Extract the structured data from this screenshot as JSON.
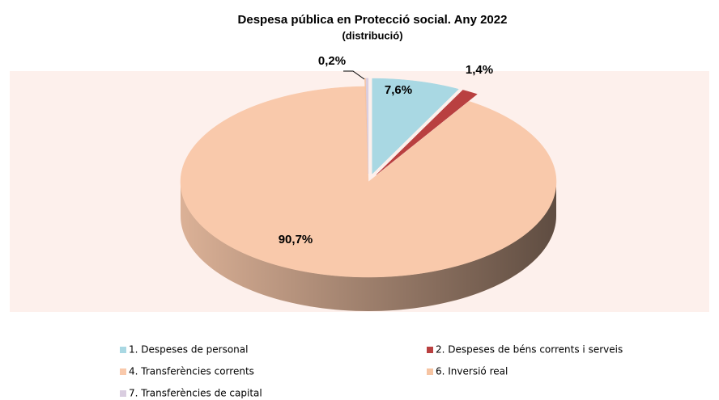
{
  "chart_data": {
    "type": "pie",
    "title": "Despesa pública en Protecció social. Any 2022",
    "subtitle": "(distribució)",
    "categories": [
      "1. Despeses de personal",
      "2. Despeses de béns corrents i serveis",
      "4. Transferències corrents",
      "6. Inversió real",
      "7. Transferències de capital"
    ],
    "values": [
      7.6,
      1.4,
      90.7,
      0.1,
      0.2
    ],
    "value_labels": [
      "7,6%",
      "1,4%",
      "90,7%",
      null,
      "0,2%"
    ],
    "colors": [
      "#a9d8e3",
      "#b94040",
      "#f9c9ab",
      "#f6c4a2",
      "#d9cde0"
    ],
    "legend": "bottom"
  }
}
